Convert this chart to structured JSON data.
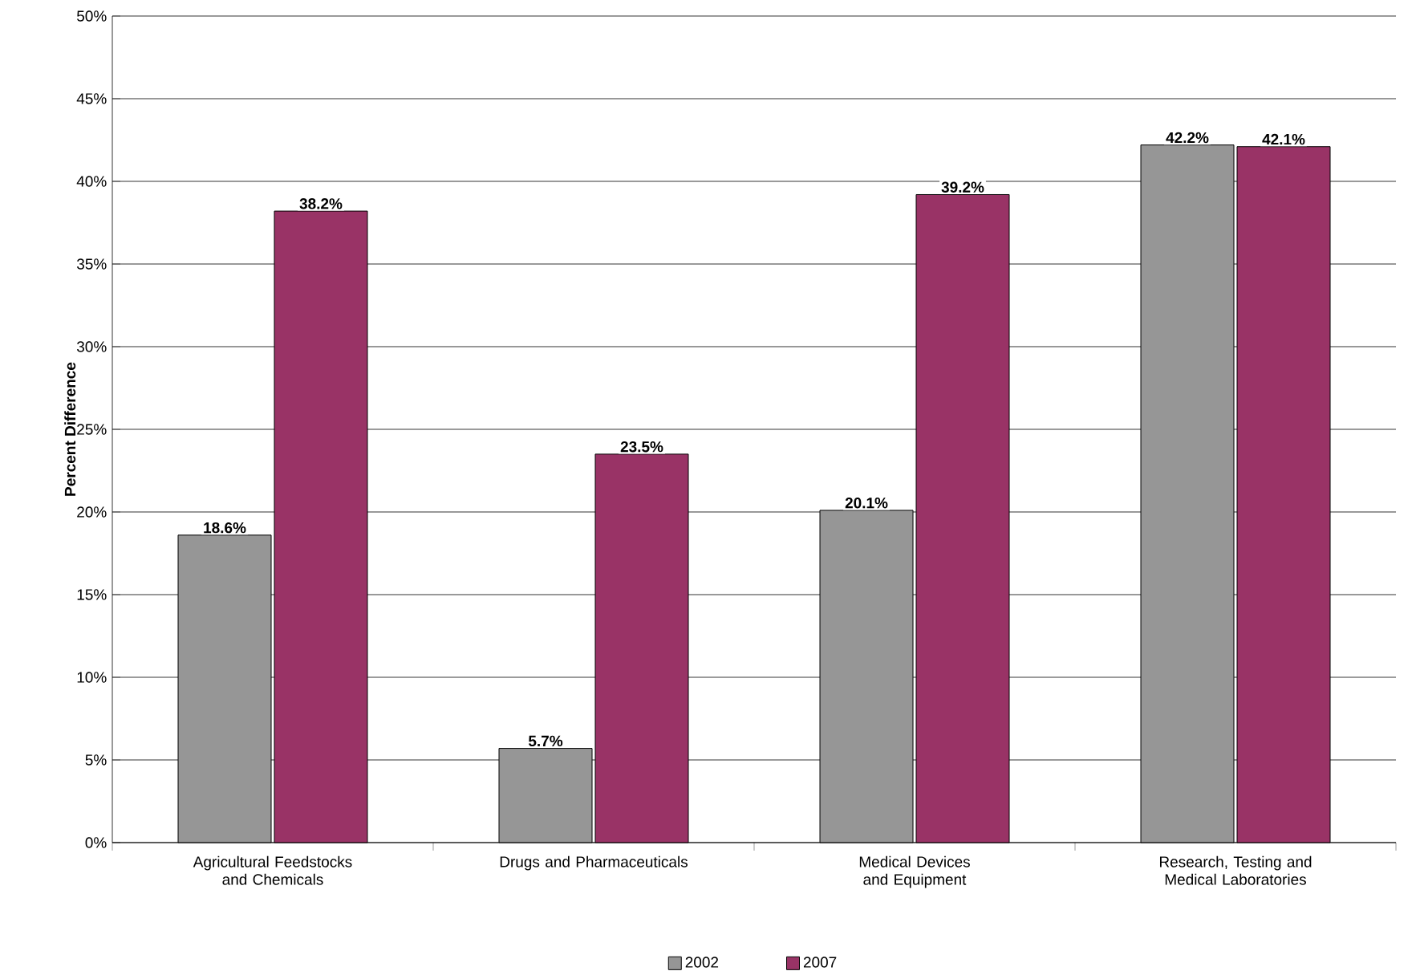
{
  "chart_data": {
    "type": "bar",
    "ylabel": "Percent Difference",
    "categories": [
      "Agricultural Feedstocks and Chemicals",
      "Drugs and Pharmaceuticals",
      "Medical Devices and Equipment",
      "Research, Testing and Medical Laboratories"
    ],
    "series": [
      {
        "name": "2002",
        "color": "#969696",
        "values": [
          18.6,
          5.7,
          20.1,
          42.2
        ],
        "value_labels": [
          "18.6%",
          "5.7%",
          "20.1%",
          "42.2%"
        ]
      },
      {
        "name": "2007",
        "color": "#993366",
        "values": [
          38.2,
          23.5,
          39.2,
          42.1
        ],
        "value_labels": [
          "38.2%",
          "23.5%",
          "39.2%",
          "42.1%"
        ]
      }
    ],
    "ylim": [
      0,
      50
    ],
    "yticks": [
      {
        "value": 0,
        "label": "0%"
      },
      {
        "value": 5,
        "label": "5%"
      },
      {
        "value": 10,
        "label": "10%"
      },
      {
        "value": 15,
        "label": "15%"
      },
      {
        "value": 20,
        "label": "20%"
      },
      {
        "value": 25,
        "label": "25%"
      },
      {
        "value": 30,
        "label": "30%"
      },
      {
        "value": 35,
        "label": "35%"
      },
      {
        "value": 40,
        "label": "40%"
      },
      {
        "value": 45,
        "label": "45%"
      },
      {
        "value": 50,
        "label": "50%"
      }
    ],
    "grid": "y",
    "legend": "bottom"
  }
}
